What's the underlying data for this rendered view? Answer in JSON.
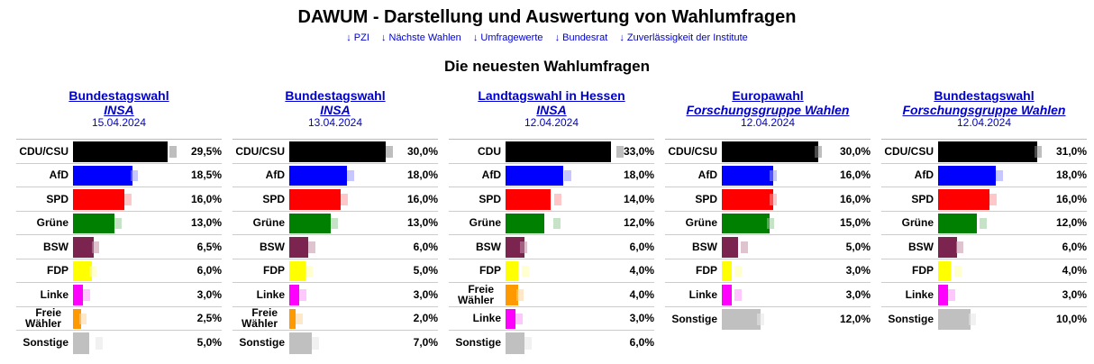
{
  "site": {
    "title": "DAWUM - Darstellung und Auswertung von Wahlumfragen",
    "nav": [
      "↓ PZI",
      "↓ Nächste Wahlen",
      "↓ Umfragewerte",
      "↓ Bundesrat",
      "↓ Zuverlässigkeit der Institute"
    ],
    "section_title": "Die neuesten Wahlumfragen"
  },
  "colors": {
    "CDU/CSU": "#000000",
    "CDU": "#000000",
    "AfD": "#0000ff",
    "SPD": "#ff0000",
    "Grüne": "#008000",
    "BSW": "#7b2450",
    "FDP": "#ffff00",
    "Linke": "#ff00ff",
    "Freie Wähler": "#ff9900",
    "Sonstige": "#c0c0c0"
  },
  "light_colors": {
    "CDU/CSU": "#888888",
    "CDU": "#888888",
    "AfD": "#9999ff",
    "SPD": "#ff9999",
    "Grüne": "#99cc99",
    "BSW": "#c494aa",
    "FDP": "#ffffaa",
    "Linke": "#ff99ff",
    "Freie Wähler": "#ffd699",
    "Sonstige": "#e6e6e6"
  },
  "chart_data": [
    {
      "type": "bar",
      "title": "Bundestagswahl",
      "institute": "INSA",
      "date": "15.04.2024",
      "parties": [
        "CDU/CSU",
        "AfD",
        "SPD",
        "Grüne",
        "BSW",
        "FDP",
        "Linke",
        "Freie Wähler",
        "Sonstige"
      ],
      "labels": [
        "CDU/CSU",
        "AfD",
        "SPD",
        "Grüne",
        "BSW",
        "FDP",
        "Linke",
        "Freie Wähler",
        "Sonstige"
      ],
      "values": [
        29.5,
        18.5,
        16.0,
        13.0,
        6.5,
        6.0,
        3.0,
        2.5,
        5.0
      ],
      "value_labels": [
        "29,5%",
        "18,5%",
        "16,0%",
        "13,0%",
        "6,5%",
        "6,0%",
        "3,0%",
        "2,5%",
        "5,0%"
      ],
      "previous": [
        30.0,
        18.0,
        16.0,
        13.0,
        6.0,
        5.0,
        3.0,
        2.0,
        7.0
      ]
    },
    {
      "type": "bar",
      "title": "Bundestagswahl",
      "institute": "INSA",
      "date": "13.04.2024",
      "parties": [
        "CDU/CSU",
        "AfD",
        "SPD",
        "Grüne",
        "BSW",
        "FDP",
        "Linke",
        "Freie Wähler",
        "Sonstige"
      ],
      "labels": [
        "CDU/CSU",
        "AfD",
        "SPD",
        "Grüne",
        "BSW",
        "FDP",
        "Linke",
        "Freie Wähler",
        "Sonstige"
      ],
      "values": [
        30.0,
        18.0,
        16.0,
        13.0,
        6.0,
        5.0,
        3.0,
        2.0,
        7.0
      ],
      "value_labels": [
        "30,0%",
        "18,0%",
        "16,0%",
        "13,0%",
        "6,0%",
        "5,0%",
        "3,0%",
        "2,0%",
        "7,0%"
      ],
      "previous": [
        30.0,
        18.0,
        16.0,
        13.0,
        6.0,
        5.0,
        3.0,
        2.0,
        7.0
      ]
    },
    {
      "type": "bar",
      "title": "Landtagswahl in Hessen",
      "institute": "INSA",
      "date": "12.04.2024",
      "parties": [
        "CDU",
        "AfD",
        "SPD",
        "Grüne",
        "BSW",
        "FDP",
        "Freie Wähler",
        "Linke",
        "Sonstige"
      ],
      "labels": [
        "CDU",
        "AfD",
        "SPD",
        "Grüne",
        "BSW",
        "FDP",
        "Freie Wähler",
        "Linke",
        "Sonstige"
      ],
      "values": [
        33.0,
        18.0,
        14.0,
        12.0,
        6.0,
        4.0,
        4.0,
        3.0,
        6.0
      ],
      "value_labels": [
        "33,0%",
        "18,0%",
        "14,0%",
        "12,0%",
        "6,0%",
        "4,0%",
        "4,0%",
        "3,0%",
        "6,0%"
      ],
      "previous": [
        34.6,
        18.4,
        15.1,
        14.8,
        4.5,
        5.0,
        3.5,
        3.1,
        6.0
      ]
    },
    {
      "type": "bar",
      "title": "Europawahl",
      "institute": "Forschungsgruppe Wahlen",
      "date": "12.04.2024",
      "parties": [
        "CDU/CSU",
        "AfD",
        "SPD",
        "Grüne",
        "BSW",
        "FDP",
        "Linke",
        "Sonstige"
      ],
      "labels": [
        "CDU/CSU",
        "AfD",
        "SPD",
        "Grüne",
        "BSW",
        "FDP",
        "Linke",
        "Sonstige"
      ],
      "values": [
        30.0,
        16.0,
        16.0,
        15.0,
        5.0,
        3.0,
        3.0,
        12.0
      ],
      "value_labels": [
        "30,0%",
        "16,0%",
        "16,0%",
        "15,0%",
        "5,0%",
        "3,0%",
        "3,0%",
        "12,0%"
      ],
      "previous": [
        29.0,
        15.0,
        15.0,
        14.0,
        6.0,
        4.0,
        4.0,
        11.0
      ]
    },
    {
      "type": "bar",
      "title": "Bundestagswahl",
      "institute": "Forschungsgruppe Wahlen",
      "date": "12.04.2024",
      "parties": [
        "CDU/CSU",
        "AfD",
        "SPD",
        "Grüne",
        "BSW",
        "FDP",
        "Linke",
        "Sonstige"
      ],
      "labels": [
        "CDU/CSU",
        "AfD",
        "SPD",
        "Grüne",
        "BSW",
        "FDP",
        "Linke",
        "Sonstige"
      ],
      "values": [
        31.0,
        18.0,
        16.0,
        12.0,
        6.0,
        4.0,
        3.0,
        10.0
      ],
      "value_labels": [
        "31,0%",
        "18,0%",
        "16,0%",
        "12,0%",
        "6,0%",
        "4,0%",
        "3,0%",
        "10,0%"
      ],
      "previous": [
        30.0,
        18.0,
        16.0,
        13.0,
        5.5,
        5.0,
        3.0,
        9.5
      ]
    }
  ]
}
